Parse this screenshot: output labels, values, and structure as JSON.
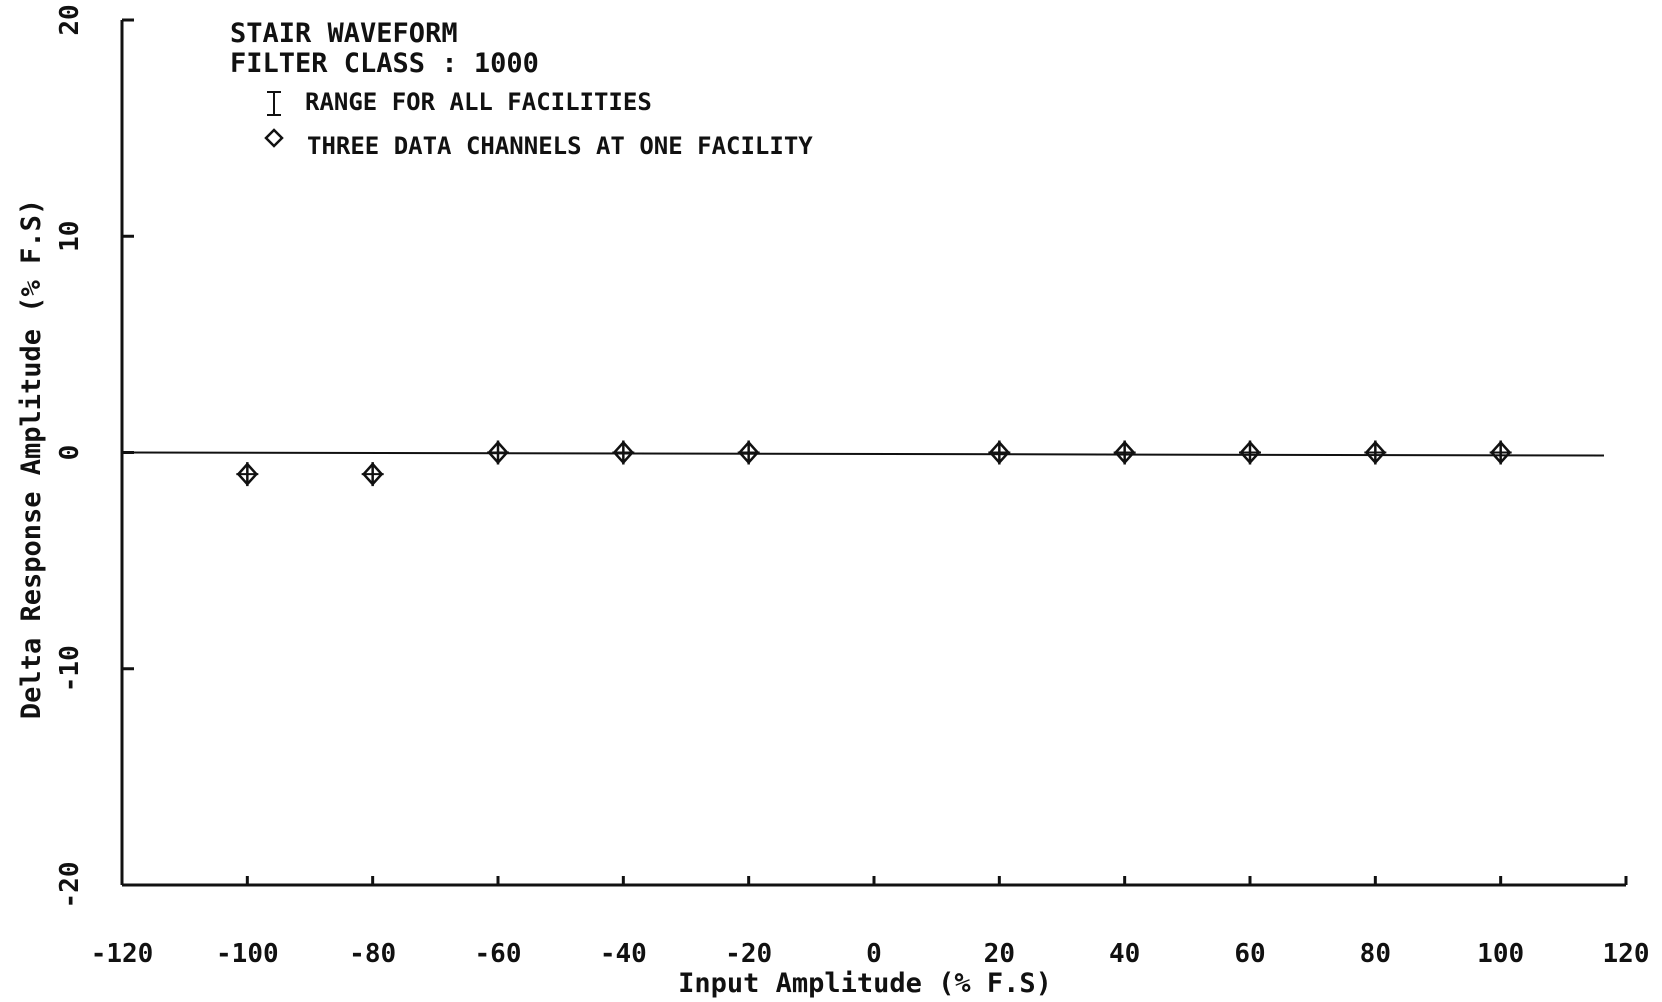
{
  "chart_data": {
    "type": "scatter",
    "title_lines": [
      "STAIR WAVEFORM",
      "FILTER CLASS : 1000"
    ],
    "legend": [
      {
        "symbol": "range-bar",
        "label": "RANGE FOR ALL FACILITIES"
      },
      {
        "symbol": "diamond",
        "label": "THREE DATA CHANNELS AT ONE FACILITY"
      }
    ],
    "xlabel": "Input Amplitude (% F.S)",
    "ylabel": "Delta Response Amplitude (% F.S)",
    "xlim": [
      -120,
      120
    ],
    "ylim": [
      -20,
      20
    ],
    "x_ticks": [
      -120,
      -100,
      -80,
      -60,
      -40,
      -20,
      0,
      20,
      40,
      60,
      80,
      100,
      120
    ],
    "y_ticks": [
      -20,
      -10,
      0,
      10,
      20
    ],
    "reference_line_y": 0,
    "series": [
      {
        "name": "THREE DATA CHANNELS AT ONE FACILITY",
        "points": [
          {
            "x": -100,
            "y": -1.0
          },
          {
            "x": -80,
            "y": -1.0
          },
          {
            "x": -60,
            "y": 0.0
          },
          {
            "x": -40,
            "y": 0.0
          },
          {
            "x": -20,
            "y": 0.0
          },
          {
            "x": 20,
            "y": 0.0
          },
          {
            "x": 40,
            "y": 0.0
          },
          {
            "x": 60,
            "y": 0.0
          },
          {
            "x": 80,
            "y": 0.0
          },
          {
            "x": 100,
            "y": 0.0
          }
        ]
      }
    ],
    "colors": {
      "ink": "#111111",
      "background": "#ffffff"
    }
  }
}
